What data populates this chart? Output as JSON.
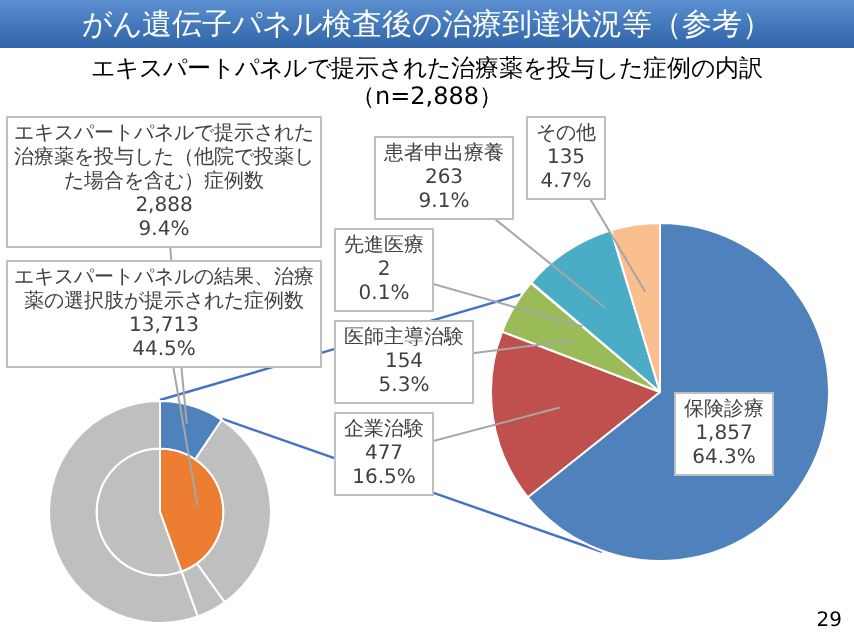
{
  "chart_data": [
    {
      "type": "pie",
      "series": [
        {
          "values": [
            9.4,
            30.7,
            4.4,
            55.5
          ],
          "colors": [
            "#4f81bd",
            "#bfbfbf",
            "#bfbfbf",
            "#bfbfbf"
          ],
          "value_labels": [
            "2,888\n9.4%",
            null,
            null,
            null
          ]
        },
        {
          "values": [
            44.5,
            55.5
          ],
          "colors": [
            "#ed7d31",
            "#bfbfbf"
          ],
          "value_labels": [
            "13,713\n44.5%",
            null
          ]
        }
      ],
      "annotations": [
        "エキスパートパネルで提示された治療薬を投与した（他院で投薬した場合を含む）症例数",
        "エキスパートパネルの結果、治療薬の選択肢が提示された症例数"
      ]
    },
    {
      "type": "pie",
      "title": "がん遺伝子パネル検査後の治療到達状況等（参考）",
      "subtitle": "エキスパートパネルで提示された治療薬を投与した症例の内訳（n=2,888）",
      "categories": [
        "保険診療",
        "企業治験",
        "医師主導治験",
        "先進医療",
        "患者申出療養",
        "その他"
      ],
      "values": [
        1857,
        477,
        154,
        2,
        263,
        135
      ],
      "colors": [
        "#4f81bd",
        "#c0504d",
        "#9bbb59",
        "#8064a2",
        "#4bacc6",
        "#f9bf8f"
      ],
      "value_labels": [
        "1,857\n64.3%",
        "477\n16.5%",
        "154\n5.3%",
        "2\n0.1%",
        "263\n9.1%",
        "135\n4.7%"
      ],
      "annotations": [
        "29"
      ]
    }
  ]
}
